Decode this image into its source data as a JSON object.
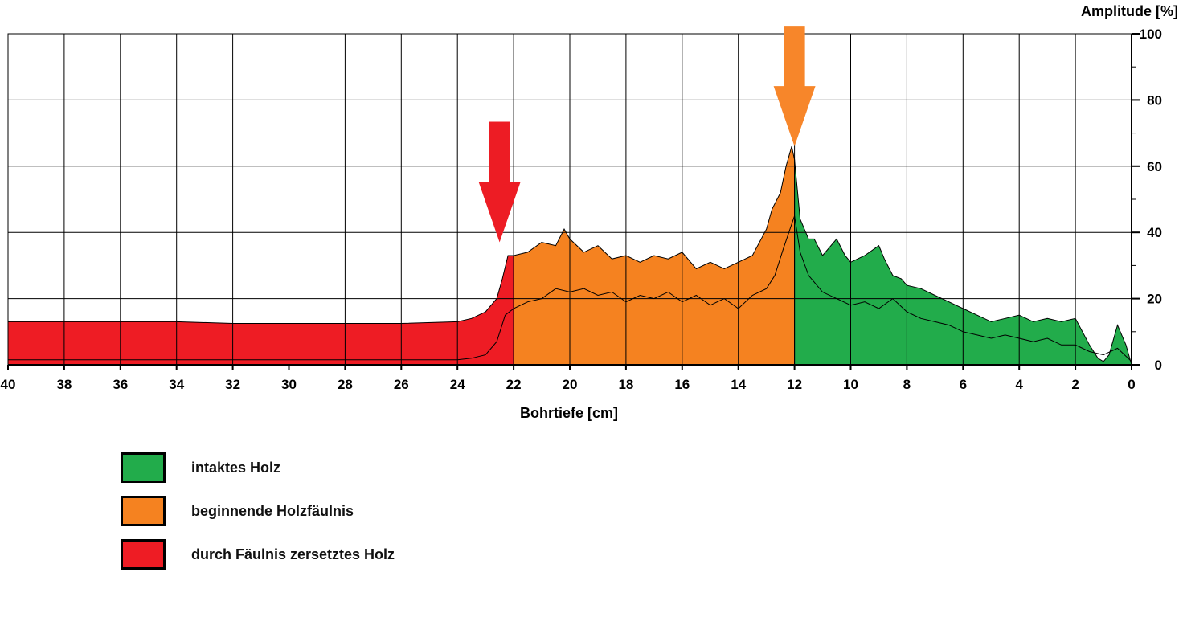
{
  "chart_data": {
    "type": "area",
    "xlabel": "Bohrtiefe [cm]",
    "ylabel": "Amplitude [%]",
    "xlim": [
      40,
      0
    ],
    "ylim": [
      0,
      100
    ],
    "x_ticks": [
      "40",
      "38",
      "36",
      "34",
      "32",
      "30",
      "28",
      "26",
      "24",
      "22",
      "20",
      "18",
      "16",
      "14",
      "12",
      "10",
      "8",
      "6",
      "4",
      "2",
      "0"
    ],
    "y_ticks": [
      "0",
      "20",
      "40",
      "60",
      "80",
      "100"
    ],
    "grid": true,
    "zones": [
      {
        "name": "durch Fäulnis zersetztes Holz",
        "from": 40,
        "to": 22,
        "color": "#ee1c24"
      },
      {
        "name": "beginnende Holzfäulnis",
        "from": 22,
        "to": 12,
        "color": "#f58220"
      },
      {
        "name": "intaktes Holz",
        "from": 12,
        "to": 0,
        "color": "#22ac4b"
      }
    ],
    "series": [
      {
        "role": "envelope",
        "x": [
          40,
          38,
          36,
          34,
          32,
          30,
          28,
          26,
          24,
          23.5,
          23,
          22.6,
          22.4,
          22.2,
          22,
          21.5,
          21,
          20.5,
          20.2,
          20,
          19.5,
          19,
          18.5,
          18,
          17.5,
          17,
          16.5,
          16,
          15.5,
          15,
          14.5,
          14,
          13.5,
          13,
          12.8,
          12.5,
          12.3,
          12.1,
          12,
          11.8,
          11.5,
          11.3,
          11,
          10.5,
          10.2,
          10,
          9.5,
          9,
          8.8,
          8.5,
          8.2,
          8,
          7.5,
          7,
          6.5,
          6,
          5.5,
          5,
          4.5,
          4,
          3.5,
          3,
          2.5,
          2,
          1.5,
          1.2,
          1,
          0.8,
          0.5,
          0.2,
          0
        ],
        "y": [
          13,
          13,
          13,
          13,
          12.5,
          12.5,
          12.5,
          12.5,
          13,
          14,
          16,
          20,
          26,
          33,
          33,
          34,
          37,
          36,
          41,
          38,
          34,
          36,
          32,
          33,
          31,
          33,
          32,
          34,
          29,
          31,
          29,
          31,
          33,
          41,
          47,
          52,
          60,
          66,
          62,
          44,
          38,
          38,
          33,
          38,
          33,
          31,
          33,
          36,
          32,
          27,
          26,
          24,
          23,
          21,
          19,
          17,
          15,
          13,
          14,
          15,
          13,
          14,
          13,
          14,
          6,
          2,
          1,
          3,
          12,
          6,
          0
        ]
      },
      {
        "role": "signal",
        "x": [
          40,
          38,
          36,
          34,
          32,
          30,
          28,
          26,
          24,
          23.5,
          23,
          22.6,
          22.3,
          22,
          21.5,
          21,
          20.5,
          20,
          19.5,
          19,
          18.5,
          18,
          17.5,
          17,
          16.5,
          16,
          15.5,
          15,
          14.5,
          14,
          13.5,
          13,
          12.7,
          12.4,
          12.2,
          12,
          11.8,
          11.5,
          11,
          10.5,
          10,
          9.5,
          9,
          8.5,
          8,
          7.5,
          7,
          6.5,
          6,
          5.5,
          5,
          4.5,
          4,
          3.5,
          3,
          2.5,
          2,
          1.5,
          1,
          0.5,
          0
        ],
        "y": [
          1.5,
          1.5,
          1.5,
          1.5,
          1.5,
          1.5,
          1.5,
          1.5,
          1.5,
          2,
          3,
          7,
          15,
          17,
          19,
          20,
          23,
          22,
          23,
          21,
          22,
          19,
          21,
          20,
          22,
          19,
          21,
          18,
          20,
          17,
          21,
          23,
          27,
          35,
          40,
          45,
          34,
          27,
          22,
          20,
          18,
          19,
          17,
          20,
          16,
          14,
          13,
          12,
          10,
          9,
          8,
          9,
          8,
          7,
          8,
          6,
          6,
          4,
          3,
          5,
          1
        ]
      }
    ],
    "annotations": [
      {
        "type": "arrow",
        "x": 22.5,
        "y_tip": 37,
        "color": "#ed1c24"
      },
      {
        "type": "arrow",
        "x": 12,
        "y_tip": 66,
        "color": "#f7862a"
      }
    ]
  },
  "legend": {
    "items": [
      {
        "label": "intaktes Holz",
        "color": "#22ac4b"
      },
      {
        "label": "beginnende Holzfäulnis",
        "color": "#f58220"
      },
      {
        "label": "durch Fäulnis zersetztes Holz",
        "color": "#ee1c24"
      }
    ]
  }
}
